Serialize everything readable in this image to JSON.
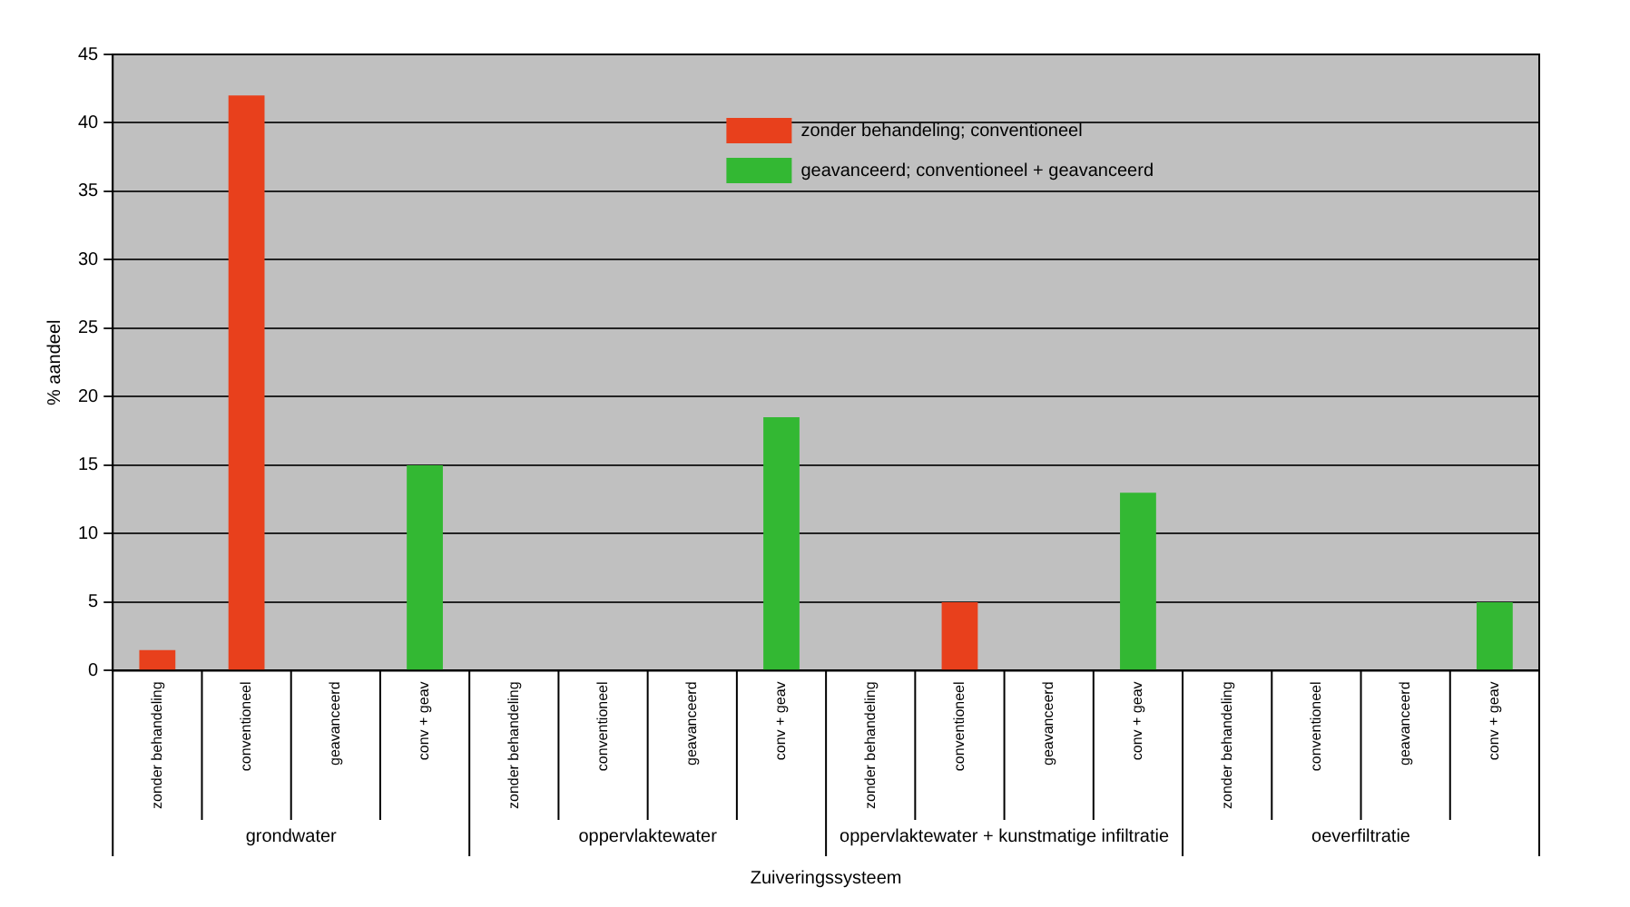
{
  "chart_data": {
    "type": "bar",
    "xlabel": "Zuiveringssysteem",
    "ylabel": "% aandeel",
    "categories": [
      "zonder behandeling",
      "conventioneel",
      "geavanceerd",
      "conv + geav",
      "zonder behandeling",
      "conventioneel",
      "geavanceerd",
      "conv + geav",
      "zonder behandeling",
      "conventioneel",
      "geavanceerd",
      "conv + geav",
      "zonder behandeling",
      "conventioneel",
      "geavanceerd",
      "conv + geav"
    ],
    "series": [
      {
        "name": "zonder behandeling; conventioneel",
        "color": "#e8401c",
        "values": [
          1.5,
          42,
          null,
          null,
          null,
          null,
          null,
          null,
          null,
          5,
          null,
          null,
          null,
          null,
          null,
          null
        ]
      },
      {
        "name": "geavanceerd; conventioneel + geavanceerd",
        "color": "#33b833",
        "values": [
          null,
          null,
          null,
          15,
          null,
          null,
          null,
          18.5,
          null,
          null,
          null,
          13,
          null,
          null,
          null,
          5
        ]
      }
    ],
    "annotations": [
      "grondwater",
      "oppervlaktewater",
      "oppervlaktewater + kunstmatige infiltratie",
      "oeverfiltratie"
    ],
    "ylim": [
      0,
      45
    ],
    "yticks": [
      0,
      5,
      10,
      15,
      20,
      25,
      30,
      35,
      40,
      45
    ],
    "grid": "y",
    "legend": "top right"
  }
}
